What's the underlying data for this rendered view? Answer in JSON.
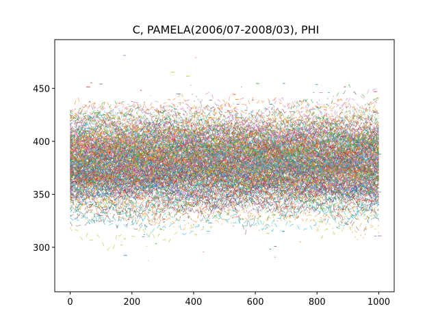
{
  "chart_data": {
    "type": "line",
    "title": "C, PAMELA(2006/07-2008/03), PHI",
    "xlabel": "",
    "ylabel": "",
    "xlim": [
      -50,
      1050
    ],
    "ylim": [
      258,
      496
    ],
    "x_ticks": [
      0,
      200,
      400,
      600,
      800,
      1000
    ],
    "y_ticks": [
      300,
      350,
      400,
      450
    ],
    "grid": false,
    "legend": "none",
    "description_series": {
      "count": 1000,
      "x_range": [
        0,
        1000
      ],
      "center_band": [
        350,
        410
      ],
      "envelope": [
        330,
        460
      ],
      "extremes": [
        275,
        485
      ]
    },
    "palette": [
      "#1f77b4",
      "#ff7f0e",
      "#2ca02c",
      "#d62728",
      "#9467bd",
      "#8c564b",
      "#e377c2",
      "#7f7f7f",
      "#bcbd22",
      "#17becf"
    ]
  }
}
